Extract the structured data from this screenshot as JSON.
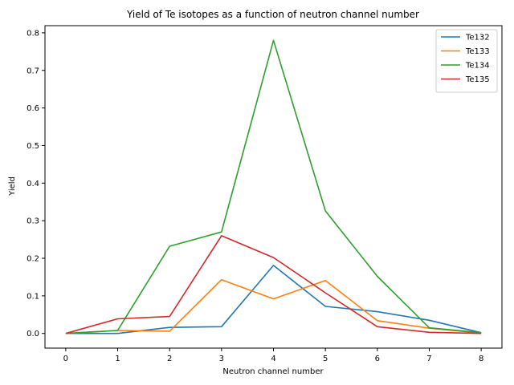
{
  "chart_data": {
    "type": "line",
    "title": "Yield of Te isotopes as a function of neutron channel number",
    "xlabel": "Neutron channel number",
    "ylabel": "Yield",
    "x": [
      0,
      1,
      2,
      3,
      4,
      5,
      6,
      7,
      8
    ],
    "xlim": [
      -0.4,
      8.4
    ],
    "ylim": [
      -0.039,
      0.819
    ],
    "xticks": [
      0,
      1,
      2,
      3,
      4,
      5,
      6,
      7,
      8
    ],
    "yticks": [
      0.0,
      0.1,
      0.2,
      0.3,
      0.4,
      0.5,
      0.6,
      0.7,
      0.8
    ],
    "ytick_labels": [
      "0.0",
      "0.1",
      "0.2",
      "0.3",
      "0.4",
      "0.5",
      "0.6",
      "0.7",
      "0.8"
    ],
    "grid": false,
    "legend_position": "top-right",
    "series": [
      {
        "name": "Te132",
        "color": "#1f77b4",
        "values": [
          0.0,
          0.0,
          0.016,
          0.018,
          0.181,
          0.072,
          0.058,
          0.035,
          0.002
        ]
      },
      {
        "name": "Te133",
        "color": "#ff7f0e",
        "values": [
          0.0,
          0.008,
          0.006,
          0.143,
          0.092,
          0.141,
          0.034,
          0.014,
          0.001
        ]
      },
      {
        "name": "Te134",
        "color": "#2ca02c",
        "values": [
          0.0,
          0.008,
          0.232,
          0.27,
          0.78,
          0.326,
          0.152,
          0.015,
          0.002
        ]
      },
      {
        "name": "Te135",
        "color": "#d62728",
        "values": [
          0.0,
          0.039,
          0.045,
          0.26,
          0.202,
          0.108,
          0.018,
          0.003,
          0.0
        ]
      }
    ]
  }
}
